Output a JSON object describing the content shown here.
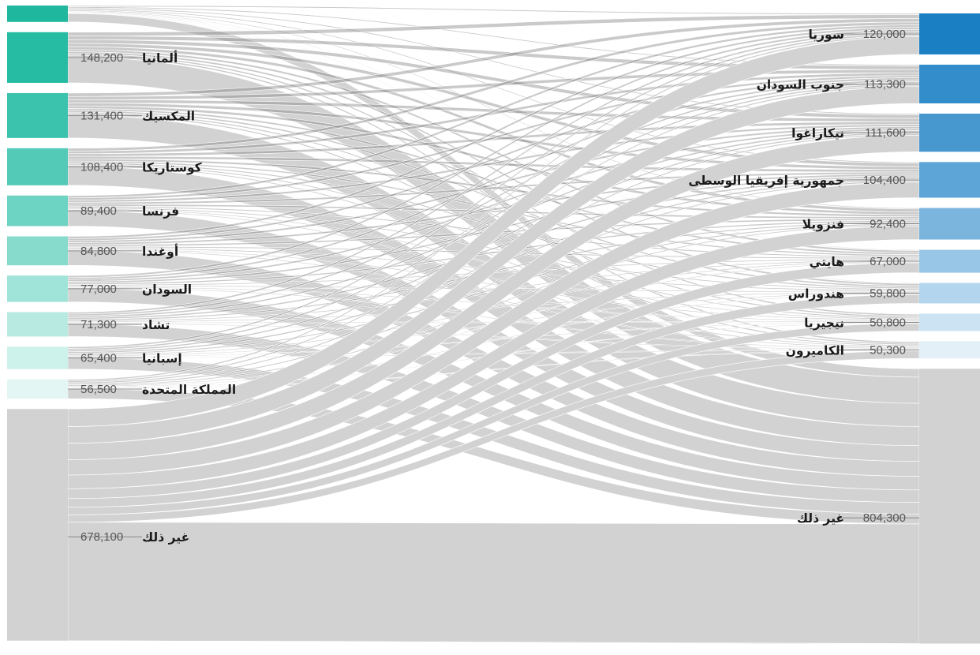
{
  "chart_data": {
    "type": "sankey",
    "title": "",
    "left_nodes": [
      {
        "id": "L0",
        "label": "",
        "value": 48000,
        "color": "#1fb89f"
      },
      {
        "id": "L1",
        "label": "ألمانيا",
        "value": 148200,
        "value_text": "148,200",
        "color": "#26bba3"
      },
      {
        "id": "L2",
        "label": "المكسيك",
        "value": 131400,
        "value_text": "131,400",
        "color": "#3cc3ad"
      },
      {
        "id": "L3",
        "label": "كوستاريكا",
        "value": 108400,
        "value_text": "108,400",
        "color": "#52cab7"
      },
      {
        "id": "L4",
        "label": "فرنسا",
        "value": 89400,
        "value_text": "89,400",
        "color": "#6dd3c2"
      },
      {
        "id": "L5",
        "label": "أوغندا",
        "value": 84800,
        "value_text": "84,800",
        "color": "#86dbcd"
      },
      {
        "id": "L6",
        "label": "السودان",
        "value": 77000,
        "value_text": "77,000",
        "color": "#a0e3d8"
      },
      {
        "id": "L7",
        "label": "تشاد",
        "value": 71300,
        "value_text": "71,300",
        "color": "#b8eae2"
      },
      {
        "id": "L8",
        "label": "إسبانيا",
        "value": 65400,
        "value_text": "65,400",
        "color": "#cdf1eb"
      },
      {
        "id": "L9",
        "label": "المملكة المتحدة",
        "value": 56500,
        "value_text": "56,500",
        "color": "#e3f6f3"
      },
      {
        "id": "L10",
        "label": "غير ذلك",
        "value": 678100,
        "value_text": "678,100",
        "color": "#d2d2d2"
      }
    ],
    "right_nodes": [
      {
        "id": "R0",
        "label": "سوريا",
        "value": 120000,
        "value_text": "120,000",
        "color": "#1b7fc4"
      },
      {
        "id": "R1",
        "label": "جنوب السودان",
        "value": 113300,
        "value_text": "113,300",
        "color": "#348dcb"
      },
      {
        "id": "R2",
        "label": "نيكاراغوا",
        "value": 111600,
        "value_text": "111,600",
        "color": "#4898d0"
      },
      {
        "id": "R3",
        "label": "جمهورية إفريقيا الوسطى",
        "value": 104400,
        "value_text": "104,400",
        "color": "#5ea5d7"
      },
      {
        "id": "R4",
        "label": "فنزويلا",
        "value": 92400,
        "value_text": "92,400",
        "color": "#7bb5de"
      },
      {
        "id": "R5",
        "label": "هايتي",
        "value": 67000,
        "value_text": "67,000",
        "color": "#98c6e6"
      },
      {
        "id": "R6",
        "label": "هندوراس",
        "value": 59800,
        "value_text": "59,800",
        "color": "#b3d5ed"
      },
      {
        "id": "R7",
        "label": "نيجيريا",
        "value": 50800,
        "value_text": "50,800",
        "color": "#cbe3f3"
      },
      {
        "id": "R8",
        "label": "الكاميرون",
        "value": 50300,
        "value_text": "50,300",
        "color": "#e3f0f8"
      },
      {
        "id": "R9",
        "label": "غير ذلك",
        "value": 804300,
        "value_text": "804,300",
        "color": "#d2d2d2"
      }
    ],
    "flow_color": "#808080",
    "other_flow_color": "#d2d2d2",
    "background": "#ffffff"
  }
}
